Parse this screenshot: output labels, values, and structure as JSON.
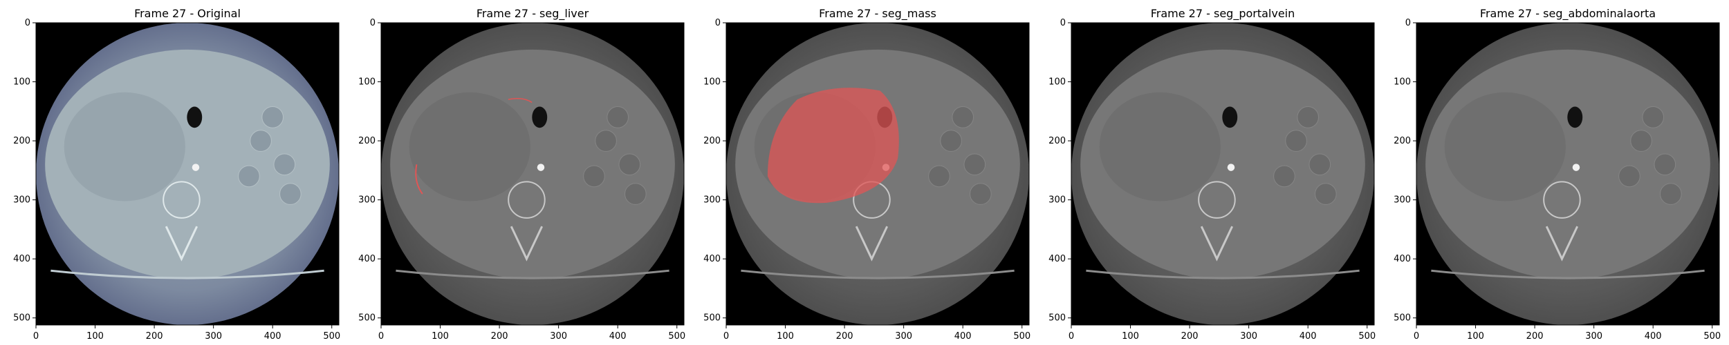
{
  "figure": {
    "panels": [
      {
        "title": "Frame 27 - Original",
        "mode": "original",
        "overlay": null
      },
      {
        "title": "Frame 27 - seg_liver",
        "mode": "gray",
        "overlay": "liver"
      },
      {
        "title": "Frame 27 - seg_mass",
        "mode": "gray",
        "overlay": "mass"
      },
      {
        "title": "Frame 27 - seg_portalvein",
        "mode": "gray",
        "overlay": null
      },
      {
        "title": "Frame 27 - seg_abdominalaorta",
        "mode": "gray",
        "overlay": null
      }
    ],
    "axis": {
      "x_ticks": [
        "0",
        "100",
        "200",
        "300",
        "400",
        "500"
      ],
      "y_ticks": [
        "0",
        "100",
        "200",
        "300",
        "400",
        "500"
      ],
      "range": [
        0,
        512
      ]
    },
    "colors": {
      "overlay": "#e05555",
      "original_tint": "#5a6485",
      "gray_tint": "#4a4a4a"
    }
  }
}
